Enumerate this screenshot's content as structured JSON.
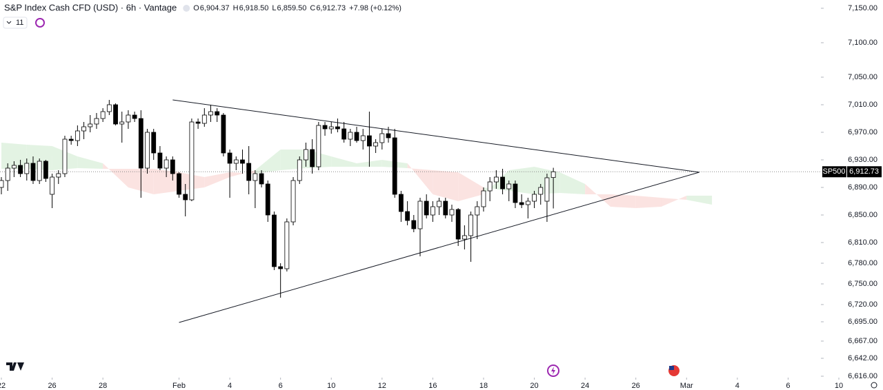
{
  "header": {
    "title": "S&P Index Cash CFD (USD) · 6h · Vantage",
    "ohlc": [
      {
        "key": "O",
        "value": "6,904.37"
      },
      {
        "key": "H",
        "value": "6,918.50"
      },
      {
        "key": "L",
        "value": "6,859.50"
      },
      {
        "key": "C",
        "value": "6,912.73"
      }
    ],
    "change": "+7.98 (+0.12%)",
    "indicators_count": "11"
  },
  "chart_data": {
    "type": "candlestick",
    "x": [
      0,
      1,
      2,
      3,
      4,
      5,
      6,
      7,
      8,
      9,
      10,
      11,
      12,
      13,
      14,
      15,
      16,
      17,
      18,
      19,
      20,
      21,
      22,
      23,
      24,
      25,
      26,
      27,
      28,
      29,
      30,
      31,
      32,
      33,
      34,
      35,
      36,
      37,
      38,
      39,
      40,
      41,
      42,
      43,
      44,
      45,
      46,
      47,
      48,
      49,
      50,
      51,
      52,
      53,
      54,
      55,
      56,
      57,
      58,
      59,
      60,
      61,
      62,
      63,
      64,
      65,
      66,
      67,
      68,
      69,
      70,
      71,
      72,
      73,
      74,
      75,
      76,
      77,
      78,
      79,
      80,
      81,
      82,
      83,
      84,
      85,
      86,
      87
    ],
    "open": [
      6890,
      6900,
      6918,
      6922,
      6910,
      6925,
      6900,
      6928,
      6880,
      6905,
      6910,
      6960,
      6958,
      6972,
      6978,
      6982,
      6990,
      7000,
      7010,
      6982,
      6985,
      6995,
      6990,
      6918,
      6970,
      6940,
      6918,
      6930,
      6910,
      6880,
      6872,
      6985,
      6983,
      6995,
      7000,
      6995,
      6940,
      6925,
      6930,
      6925,
      6900,
      6910,
      6895,
      6850,
      6775,
      6772,
      6840,
      6900,
      6930,
      6945,
      6920,
      6980,
      6975,
      6978,
      6975,
      6960,
      6970,
      6958,
      6965,
      6950,
      6955,
      6968,
      6962,
      6880,
      6855,
      6842,
      6830,
      6870,
      6850,
      6862,
      6870,
      6850,
      6858,
      6815,
      6820,
      6850,
      6862,
      6885,
      6898,
      6905,
      6888,
      6895,
      6868,
      6865,
      6870,
      6880,
      6870,
      6904.37
    ],
    "high": [
      6905,
      6925,
      6928,
      6930,
      6932,
      6935,
      6932,
      6930,
      6910,
      6915,
      6965,
      6965,
      6980,
      6985,
      6995,
      6998,
      7005,
      7017,
      7012,
      7000,
      7002,
      7000,
      7002,
      6975,
      6975,
      6950,
      6935,
      6935,
      6912,
      6895,
      6990,
      6990,
      7005,
      7010,
      7005,
      6998,
      6945,
      6935,
      6945,
      6950,
      6915,
      6915,
      6900,
      6855,
      6780,
      6845,
      6905,
      6935,
      6955,
      6960,
      6985,
      6985,
      6985,
      6990,
      6985,
      6975,
      6978,
      6975,
      7000,
      6960,
      6975,
      6978,
      6975,
      6885,
      6870,
      6850,
      6875,
      6880,
      6870,
      6875,
      6875,
      6865,
      6860,
      6835,
      6855,
      6870,
      6890,
      6905,
      6915,
      6917,
      6900,
      6900,
      6880,
      6875,
      6885,
      6895,
      6910,
      6918.5
    ],
    "low": [
      6880,
      6885,
      6905,
      6905,
      6900,
      6895,
      6895,
      6898,
      6860,
      6895,
      6905,
      6952,
      6950,
      6960,
      6970,
      6975,
      6985,
      6995,
      6980,
      6955,
      6975,
      6985,
      6875,
      6910,
      6930,
      6915,
      6905,
      6900,
      6875,
      6848,
      6870,
      6975,
      6978,
      6985,
      6985,
      6935,
      6875,
      6915,
      6910,
      6880,
      6860,
      6890,
      6840,
      6770,
      6730,
      6768,
      6835,
      6895,
      6920,
      6910,
      6915,
      6965,
      6968,
      6970,
      6955,
      6950,
      6955,
      6945,
      6920,
      6940,
      6945,
      6955,
      6875,
      6840,
      6835,
      6825,
      6790,
      6845,
      6840,
      6850,
      6845,
      6840,
      6805,
      6800,
      6782,
      6815,
      6855,
      6870,
      6888,
      6880,
      6870,
      6860,
      6860,
      6845,
      6860,
      6865,
      6840,
      6859.5
    ],
    "close": [
      6900,
      6918,
      6922,
      6910,
      6925,
      6900,
      6928,
      6903,
      6905,
      6910,
      6960,
      6958,
      6972,
      6978,
      6982,
      6990,
      7000,
      7010,
      6982,
      6985,
      6995,
      6990,
      6918,
      6970,
      6940,
      6918,
      6930,
      6910,
      6880,
      6872,
      6985,
      6983,
      6995,
      7000,
      6995,
      6940,
      6925,
      6930,
      6925,
      6900,
      6910,
      6895,
      6850,
      6775,
      6772,
      6840,
      6900,
      6930,
      6945,
      6920,
      6980,
      6975,
      6978,
      6975,
      6960,
      6970,
      6958,
      6965,
      6950,
      6955,
      6968,
      6962,
      6880,
      6855,
      6842,
      6830,
      6870,
      6850,
      6862,
      6870,
      6850,
      6858,
      6815,
      6820,
      6850,
      6862,
      6885,
      6898,
      6905,
      6888,
      6895,
      6868,
      6865,
      6870,
      6880,
      6890,
      6904,
      6912.73
    ],
    "cloud": {
      "x": [
        0,
        4,
        8,
        12,
        16,
        20,
        24,
        28,
        32,
        36,
        40,
        44,
        48,
        52,
        56,
        60,
        64,
        68,
        72,
        76,
        80,
        84,
        88,
        92,
        96,
        100,
        104,
        108,
        112
      ],
      "span_a": [
        6955,
        6952,
        6950,
        6935,
        6925,
        6890,
        6880,
        6885,
        6890,
        6905,
        6915,
        6945,
        6945,
        6935,
        6925,
        6930,
        6925,
        6880,
        6870,
        6880,
        6915,
        6920,
        6912,
        6895,
        6862,
        6860,
        6862,
        6878,
        6878
      ],
      "span_b": [
        6917,
        6917,
        6915,
        6918,
        6917,
        6917,
        6917,
        6912,
        6905,
        6912,
        6910,
        6915,
        6918,
        6920,
        6920,
        6920,
        6918,
        6915,
        6912,
        6890,
        6885,
        6880,
        6882,
        6880,
        6880,
        6878,
        6875,
        6872,
        6865
      ],
      "up_color": "#e3f3e3",
      "down_color": "#fbe3e1"
    },
    "trendlines": [
      {
        "x": [
          27,
          110
        ],
        "y": [
          7017,
          6912
        ]
      },
      {
        "x": [
          28,
          110
        ],
        "y": [
          6694,
          6912
        ]
      }
    ],
    "last_price": 6912.73,
    "last_price_label": "6,912.73",
    "symbol_tag": "SP500",
    "xlim": [
      0,
      132
    ],
    "xticks": [
      {
        "value": 0,
        "label": "22"
      },
      {
        "value": 8,
        "label": "26"
      },
      {
        "value": 16,
        "label": "28"
      },
      {
        "value": 28,
        "label": "Feb"
      },
      {
        "value": 36,
        "label": "4"
      },
      {
        "value": 44,
        "label": "6"
      },
      {
        "value": 52,
        "label": "10"
      },
      {
        "value": 60,
        "label": "12"
      },
      {
        "value": 68,
        "label": "16"
      },
      {
        "value": 76,
        "label": "18"
      },
      {
        "value": 84,
        "label": "20"
      },
      {
        "value": 92,
        "label": "24"
      },
      {
        "value": 100,
        "label": "26"
      },
      {
        "value": 108,
        "label": "Mar"
      },
      {
        "value": 116,
        "label": "4"
      },
      {
        "value": 124,
        "label": "6"
      },
      {
        "value": 132,
        "label": "10"
      }
    ],
    "ylim": [
      6616,
      7150
    ],
    "yticks": [
      {
        "value": 7150,
        "label": "7,150.00"
      },
      {
        "value": 7100,
        "label": "7,100.00"
      },
      {
        "value": 7050,
        "label": "7,050.00"
      },
      {
        "value": 7010,
        "label": "7,010.00"
      },
      {
        "value": 6970,
        "label": "6,970.00"
      },
      {
        "value": 6930,
        "label": "6,930.00"
      },
      {
        "value": 6890,
        "label": "6,890.00"
      },
      {
        "value": 6850,
        "label": "6,850.00"
      },
      {
        "value": 6810,
        "label": "6,810.00"
      },
      {
        "value": 6780,
        "label": "6,780.00"
      },
      {
        "value": 6750,
        "label": "6,750.00"
      },
      {
        "value": 6720,
        "label": "6,720.00"
      },
      {
        "value": 6695,
        "label": "6,695.00"
      },
      {
        "value": 6667,
        "label": "6,667.00"
      },
      {
        "value": 6642,
        "label": "6,642.00"
      },
      {
        "value": 6616,
        "label": "6,616.00"
      }
    ],
    "up_color": "#ffffff",
    "down_color": "#000000",
    "wick_color": "#000000"
  }
}
